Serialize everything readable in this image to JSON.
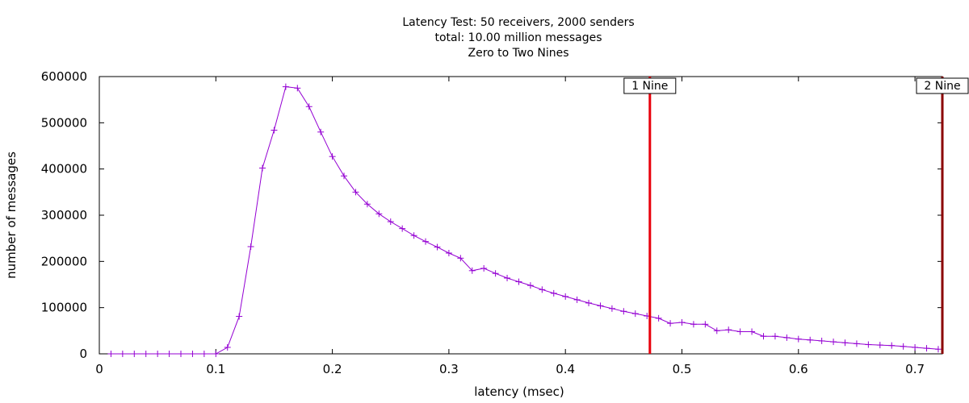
{
  "chart_data": {
    "type": "line",
    "title_lines": [
      "Latency Test: 50 receivers, 2000 senders",
      "total: 10.00 million messages",
      "Zero to Two Nines"
    ],
    "xlabel": "latency (msec)",
    "ylabel": "number of messages",
    "xlim": [
      0,
      0.7235
    ],
    "ylim": [
      0,
      600000
    ],
    "xticks": [
      0,
      0.1,
      0.2,
      0.3,
      0.4,
      0.5,
      0.6,
      0.7
    ],
    "xtick_labels": [
      "0",
      "0.1",
      "0.2",
      "0.3",
      "0.4",
      "0.5",
      "0.6",
      "0.7"
    ],
    "yticks": [
      0,
      100000,
      200000,
      300000,
      400000,
      500000,
      600000
    ],
    "ytick_labels": [
      "0",
      "100000",
      "200000",
      "300000",
      "400000",
      "500000",
      "600000"
    ],
    "grid": false,
    "series": [
      {
        "color": "#9400d3",
        "marker": "plus",
        "x": [
          0.01,
          0.02,
          0.03,
          0.04,
          0.05,
          0.06,
          0.07,
          0.08,
          0.09,
          0.1,
          0.11,
          0.12,
          0.13,
          0.14,
          0.15,
          0.16,
          0.17,
          0.18,
          0.19,
          0.2,
          0.21,
          0.22,
          0.23,
          0.24,
          0.25,
          0.26,
          0.27,
          0.28,
          0.29,
          0.3,
          0.31,
          0.32,
          0.33,
          0.34,
          0.35,
          0.36,
          0.37,
          0.38,
          0.39,
          0.4,
          0.41,
          0.42,
          0.43,
          0.44,
          0.45,
          0.46,
          0.47,
          0.48,
          0.49,
          0.5,
          0.51,
          0.52,
          0.53,
          0.54,
          0.55,
          0.56,
          0.57,
          0.58,
          0.59,
          0.6,
          0.61,
          0.62,
          0.63,
          0.64,
          0.65,
          0.66,
          0.67,
          0.68,
          0.69,
          0.7,
          0.71,
          0.72
        ],
        "y": [
          0,
          0,
          0,
          0,
          0,
          0,
          0,
          0,
          0,
          0,
          14000,
          81000,
          232000,
          402000,
          484000,
          578000,
          575000,
          535000,
          480000,
          427000,
          385000,
          350000,
          324000,
          303000,
          286000,
          271000,
          256000,
          243000,
          231000,
          218000,
          207000,
          180000,
          185000,
          174000,
          164000,
          156000,
          148000,
          139000,
          131000,
          124000,
          117000,
          110000,
          104000,
          98000,
          92000,
          87000,
          82000,
          77000,
          66000,
          68000,
          64000,
          64000,
          50000,
          52000,
          48000,
          48000,
          38000,
          38000,
          35000,
          32000,
          30000,
          28000,
          26000,
          24000,
          22000,
          20000,
          19000,
          18000,
          16000,
          14000,
          12000,
          10000
        ]
      }
    ],
    "markers": [
      {
        "label": "1 Nine",
        "x": 0.4725,
        "color": "#e8000b"
      },
      {
        "label": "2 Nine",
        "x": 0.7235,
        "color": "#8b0000"
      }
    ]
  }
}
